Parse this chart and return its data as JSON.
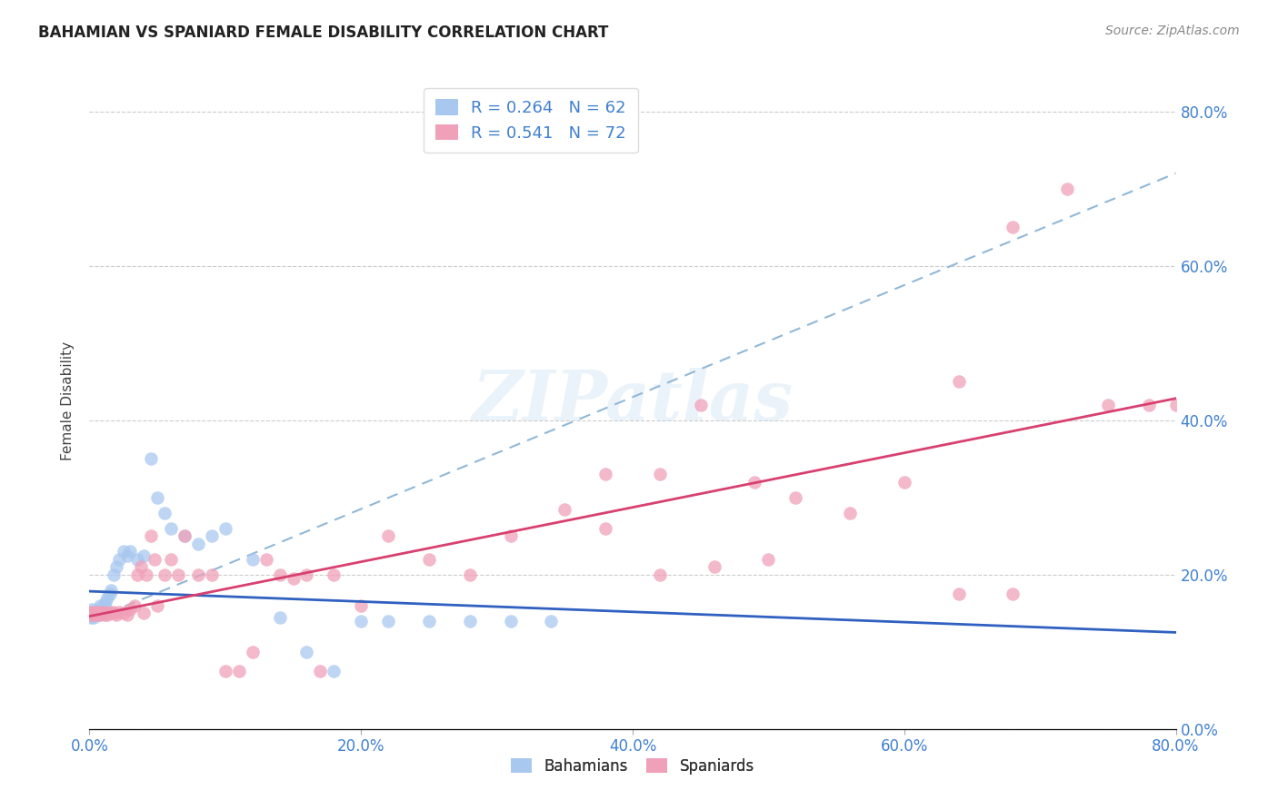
{
  "title": "BAHAMIAN VS SPANIARD FEMALE DISABILITY CORRELATION CHART",
  "source": "Source: ZipAtlas.com",
  "ylabel": "Female Disability",
  "bahamian_color": "#a8c8f0",
  "spaniard_color": "#f0a0b8",
  "bahamian_line_color": "#3060c0",
  "spaniard_line_color": "#d84070",
  "dashed_line_color": "#90b8d8",
  "legend_bahamian_R": "0.264",
  "legend_bahamian_N": "62",
  "legend_spaniard_R": "0.541",
  "legend_spaniard_N": "72",
  "x_min": 0.0,
  "x_max": 0.8,
  "y_min": 0.0,
  "y_max": 0.85,
  "tick_color": "#4080d0",
  "bahamian_x": [
    0.001,
    0.001,
    0.001,
    0.002,
    0.002,
    0.002,
    0.002,
    0.003,
    0.003,
    0.003,
    0.003,
    0.003,
    0.004,
    0.004,
    0.004,
    0.005,
    0.005,
    0.005,
    0.005,
    0.006,
    0.006,
    0.006,
    0.007,
    0.007,
    0.008,
    0.008,
    0.008,
    0.009,
    0.009,
    0.01,
    0.01,
    0.011,
    0.012,
    0.013,
    0.015,
    0.016,
    0.018,
    0.02,
    0.022,
    0.025,
    0.028,
    0.03,
    0.035,
    0.04,
    0.045,
    0.05,
    0.055,
    0.06,
    0.07,
    0.08,
    0.09,
    0.1,
    0.12,
    0.14,
    0.16,
    0.18,
    0.2,
    0.22,
    0.25,
    0.28,
    0.31,
    0.34
  ],
  "bahamian_y": [
    0.148,
    0.152,
    0.145,
    0.15,
    0.148,
    0.152,
    0.155,
    0.148,
    0.15,
    0.152,
    0.145,
    0.148,
    0.15,
    0.148,
    0.152,
    0.148,
    0.15,
    0.152,
    0.148,
    0.15,
    0.152,
    0.148,
    0.15,
    0.155,
    0.148,
    0.152,
    0.16,
    0.15,
    0.155,
    0.152,
    0.158,
    0.16,
    0.165,
    0.17,
    0.175,
    0.18,
    0.2,
    0.21,
    0.22,
    0.23,
    0.225,
    0.23,
    0.22,
    0.225,
    0.35,
    0.3,
    0.28,
    0.26,
    0.25,
    0.24,
    0.25,
    0.26,
    0.22,
    0.145,
    0.1,
    0.075,
    0.14,
    0.14,
    0.14,
    0.14,
    0.14,
    0.14
  ],
  "spaniard_x": [
    0.001,
    0.002,
    0.002,
    0.003,
    0.003,
    0.004,
    0.005,
    0.005,
    0.006,
    0.007,
    0.008,
    0.009,
    0.01,
    0.011,
    0.012,
    0.013,
    0.015,
    0.017,
    0.018,
    0.02,
    0.022,
    0.025,
    0.028,
    0.03,
    0.033,
    0.035,
    0.038,
    0.04,
    0.042,
    0.045,
    0.048,
    0.05,
    0.055,
    0.06,
    0.065,
    0.07,
    0.08,
    0.09,
    0.1,
    0.11,
    0.12,
    0.13,
    0.14,
    0.15,
    0.16,
    0.17,
    0.18,
    0.2,
    0.22,
    0.25,
    0.28,
    0.31,
    0.35,
    0.38,
    0.42,
    0.46,
    0.49,
    0.52,
    0.56,
    0.6,
    0.64,
    0.68,
    0.72,
    0.75,
    0.78,
    0.8,
    0.64,
    0.68,
    0.45,
    0.5,
    0.38,
    0.42
  ],
  "spaniard_y": [
    0.15,
    0.148,
    0.152,
    0.15,
    0.148,
    0.15,
    0.148,
    0.152,
    0.15,
    0.148,
    0.15,
    0.152,
    0.15,
    0.148,
    0.152,
    0.148,
    0.15,
    0.152,
    0.15,
    0.148,
    0.152,
    0.15,
    0.148,
    0.155,
    0.16,
    0.2,
    0.21,
    0.15,
    0.2,
    0.25,
    0.22,
    0.16,
    0.2,
    0.22,
    0.2,
    0.25,
    0.2,
    0.2,
    0.075,
    0.075,
    0.1,
    0.22,
    0.2,
    0.195,
    0.2,
    0.075,
    0.2,
    0.16,
    0.25,
    0.22,
    0.2,
    0.25,
    0.285,
    0.26,
    0.2,
    0.21,
    0.32,
    0.3,
    0.28,
    0.32,
    0.45,
    0.65,
    0.7,
    0.42,
    0.42,
    0.42,
    0.175,
    0.175,
    0.42,
    0.22,
    0.33,
    0.33
  ]
}
